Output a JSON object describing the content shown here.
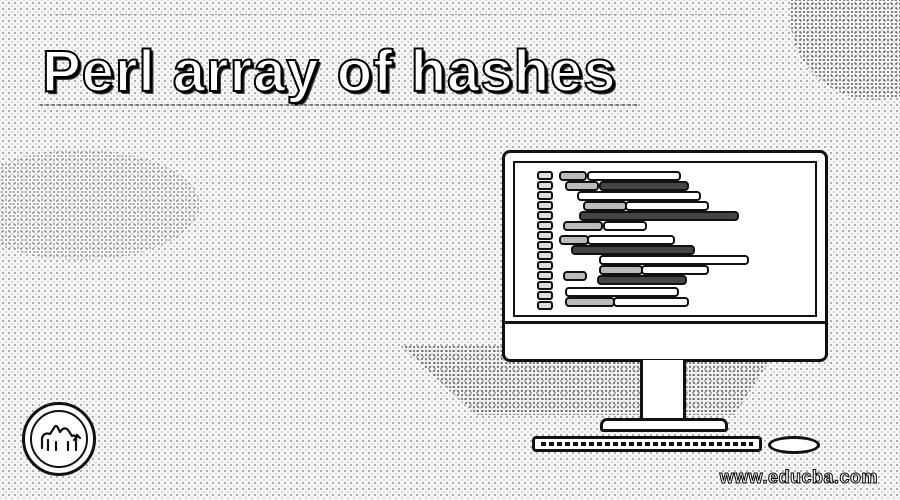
{
  "title": "Perl array of hashes",
  "watermark": "www.educba.com",
  "logo": {
    "icon": "camel-icon"
  },
  "illustration": {
    "icon": "computer-monitor-icon"
  }
}
